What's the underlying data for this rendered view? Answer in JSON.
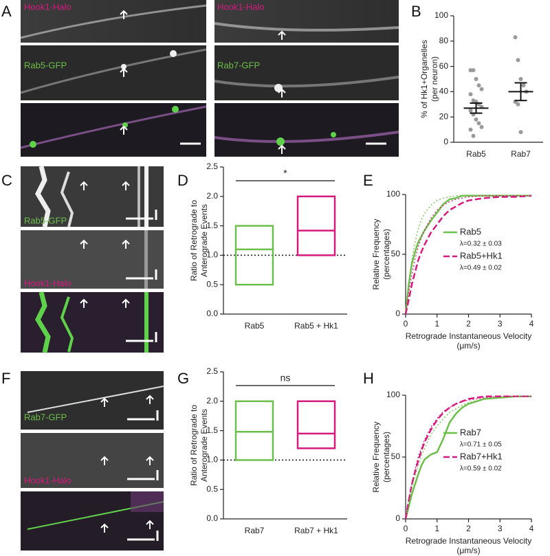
{
  "panel_letters": [
    "A",
    "B",
    "C",
    "D",
    "E",
    "F",
    "G",
    "H"
  ],
  "image_labels": {
    "A": [
      "Hook1-Halo",
      "Hook1-Halo",
      "Rab5-GFP",
      "Rab7-GFP"
    ],
    "C": [
      "Rab5-GFP",
      "Hook1-Halo"
    ],
    "F": [
      "Rab7-GFP",
      "Hook1-Halo"
    ]
  },
  "chart_data": [
    {
      "type": "dot",
      "ylabel": [
        "% of Hk1+Organelles",
        "(per neuron)"
      ],
      "categories": [
        "Rab5",
        "Rab7"
      ],
      "points": [
        [
          57,
          57,
          50,
          45,
          42,
          38,
          33,
          32,
          30,
          28,
          25,
          22,
          18,
          15,
          12,
          10,
          5
        ],
        [
          83,
          65,
          50,
          45,
          40,
          32,
          30,
          8
        ]
      ],
      "means": [
        27,
        40
      ],
      "errors": [
        4,
        7
      ],
      "point_color": "#9a9a9a",
      "ylim": [
        0,
        100
      ],
      "yticks": [
        0,
        20,
        40,
        60,
        80,
        100
      ]
    },
    {
      "type": "box",
      "ylabel": [
        "Ratio of Retrograde to",
        "Anterograde Events"
      ],
      "categories": [
        "Rab5",
        "Rab5 + Hk1"
      ],
      "colors": [
        "#6cbf4a",
        "#d6197e"
      ],
      "lows": [
        0.5,
        1.0
      ],
      "highs": [
        1.5,
        2.0
      ],
      "medians": [
        1.1,
        1.42
      ],
      "hline": 1.0,
      "significance": "*",
      "ylim": [
        0,
        2.5
      ],
      "yticks": [
        {
          "value": 0,
          "label": "0.0"
        },
        0.5,
        {
          "value": 1,
          "label": "1.0"
        },
        1.5,
        {
          "value": 2,
          "label": "2.0"
        },
        2.5
      ]
    },
    {
      "type": "line",
      "ylabel": [
        "Relative Frequency",
        "(percentages)"
      ],
      "xlabel": [
        "Retrograde Instantaneous Velocity",
        "(μm/s)"
      ],
      "x": [
        0,
        0.1,
        0.2,
        0.3,
        0.4,
        0.5,
        0.6,
        0.8,
        1.0,
        1.2,
        1.4,
        1.6,
        1.8,
        2,
        2.5,
        3,
        3.5,
        4
      ],
      "series": [
        {
          "name": "Rab5",
          "note": "λ=0.32 ± 0.03",
          "color": "#6cbf4a",
          "dash": "solid",
          "values": [
            0,
            25,
            42,
            52,
            60,
            65,
            70,
            78,
            85,
            92,
            96,
            97,
            99,
            99,
            99,
            99,
            99,
            99
          ]
        },
        {
          "name": "Rab5+Hk1",
          "note": "λ=0.49 ± 0.02",
          "color": "#d6197e",
          "dash": "dashed",
          "values": [
            0,
            12,
            25,
            35,
            45,
            52,
            58,
            68,
            75,
            82,
            87,
            90,
            93,
            95,
            97,
            98,
            98,
            99
          ]
        },
        {
          "color": "#6cbf4a",
          "dash": "dotted",
          "values": [
            0,
            27,
            46,
            60,
            71,
            79,
            84,
            91,
            95,
            97,
            98,
            99,
            99,
            99,
            99,
            99,
            99,
            99
          ]
        },
        {
          "color": "#d6197e",
          "dash": "dotted",
          "values": [
            0,
            18,
            33,
            46,
            56,
            64,
            70,
            80,
            87,
            91,
            94,
            96,
            97,
            98,
            99,
            99,
            99,
            99
          ]
        }
      ],
      "xlim": [
        0,
        4
      ],
      "xticks": [
        0,
        1,
        2,
        3,
        4
      ],
      "ylim": [
        0,
        100
      ],
      "yticks": [
        0,
        50,
        100
      ]
    },
    {
      "type": "box",
      "ylabel": [
        "Ratio of Retrograde to",
        "Anterograde Events"
      ],
      "categories": [
        "Rab7",
        "Rab7 + Hk1"
      ],
      "colors": [
        "#6cbf4a",
        "#d6197e"
      ],
      "lows": [
        1.0,
        1.2
      ],
      "highs": [
        2.0,
        2.0
      ],
      "medians": [
        1.48,
        1.45
      ],
      "hline": 1.0,
      "significance": "ns",
      "ylim": [
        0,
        2.5
      ],
      "yticks": [
        {
          "value": 0,
          "label": "0.0"
        },
        0.5,
        {
          "value": 1,
          "label": "1.0"
        },
        1.5,
        {
          "value": 2,
          "label": "2.0"
        },
        2.5
      ]
    },
    {
      "type": "line",
      "ylabel": [
        "Relative Frequency",
        "(percentages)"
      ],
      "xlabel": [
        "Retrograde Instantaneous Velocity",
        "(μm/s)"
      ],
      "x": [
        0,
        0.1,
        0.2,
        0.3,
        0.4,
        0.5,
        0.6,
        0.8,
        1.0,
        1.2,
        1.4,
        1.6,
        1.8,
        2,
        2.5,
        3,
        3.5,
        4
      ],
      "series": [
        {
          "name": "Rab7",
          "note": "λ=0.71 ± 0.05",
          "color": "#6cbf4a",
          "dash": "solid",
          "values": [
            0,
            10,
            20,
            28,
            36,
            43,
            48,
            52,
            54,
            65,
            78,
            85,
            90,
            93,
            97,
            98,
            99,
            99
          ]
        },
        {
          "name": "Rab7+Hk1",
          "note": "λ=0.59 ± 0.02",
          "color": "#d6197e",
          "dash": "dashed",
          "values": [
            0,
            15,
            28,
            38,
            47,
            55,
            62,
            72,
            80,
            86,
            90,
            93,
            95,
            97,
            99,
            99,
            99,
            99
          ]
        },
        {
          "color": "#6cbf4a",
          "dash": "dotted",
          "values": [
            0,
            13,
            25,
            35,
            43,
            51,
            57,
            68,
            75,
            81,
            86,
            89,
            92,
            94,
            97,
            98,
            99,
            99
          ]
        },
        {
          "color": "#d6197e",
          "dash": "dotted",
          "values": [
            0,
            16,
            29,
            40,
            50,
            57,
            64,
            74,
            81,
            87,
            90,
            93,
            95,
            96,
            98,
            99,
            99,
            99
          ]
        }
      ],
      "xlim": [
        0,
        4
      ],
      "xticks": [
        0,
        1,
        2,
        3,
        4
      ],
      "ylim": [
        0,
        100
      ],
      "yticks": [
        0,
        50,
        100
      ]
    }
  ]
}
